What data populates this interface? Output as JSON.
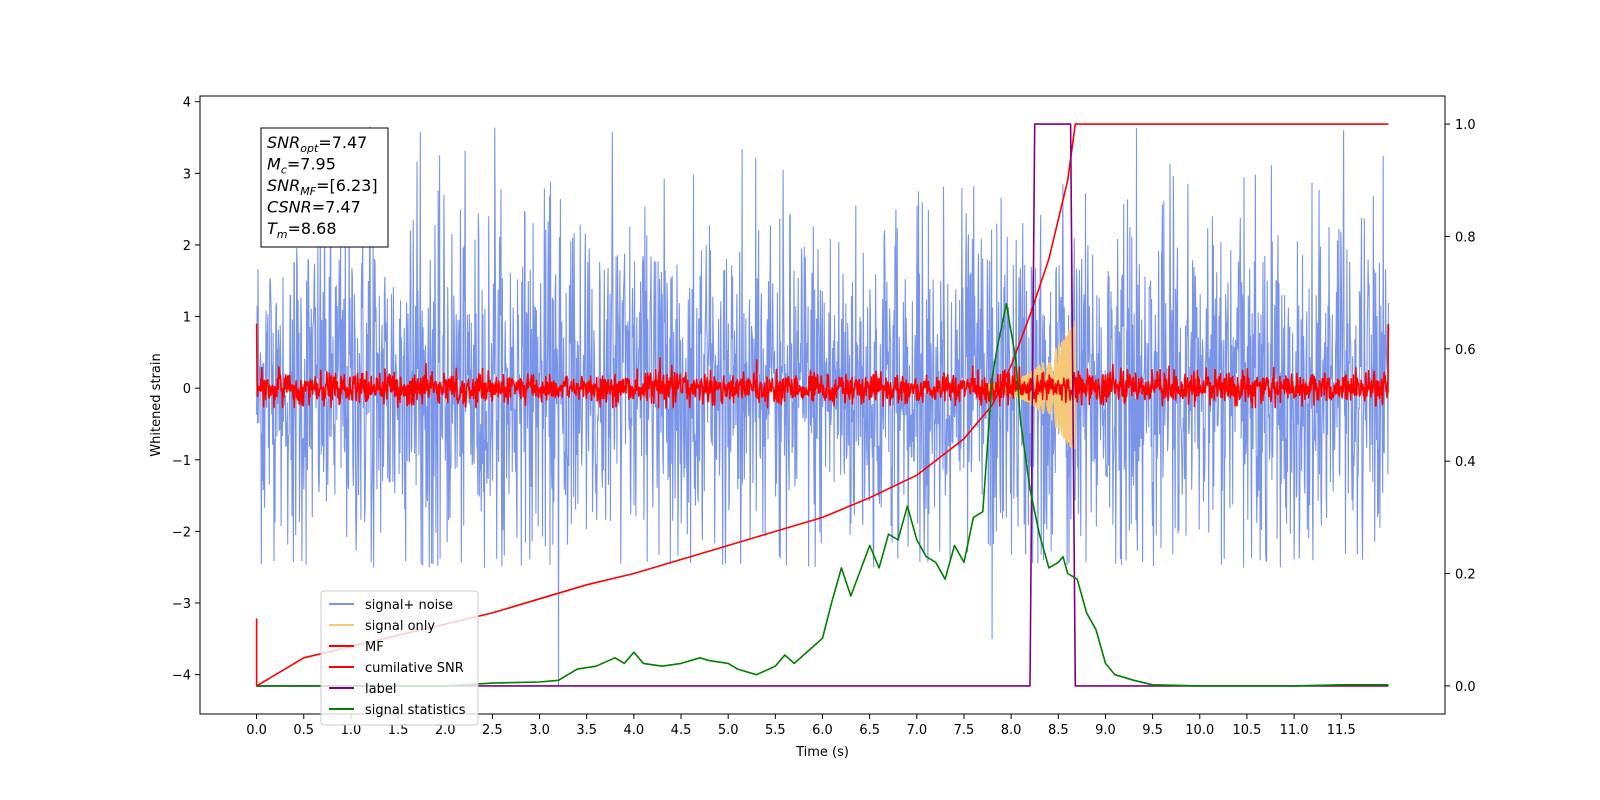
{
  "chart_data": {
    "type": "line",
    "xlabel": "Time (s)",
    "ylabel_left": "Whitened strain",
    "xlim": [
      -0.6,
      12.6
    ],
    "ylim_left": [
      -4.55,
      4.08
    ],
    "ylim_right": [
      -0.05,
      1.05
    ],
    "x_ticks": [
      "0.0",
      "0.5",
      "1.0",
      "1.5",
      "2.0",
      "2.5",
      "3.0",
      "3.5",
      "4.0",
      "4.5",
      "5.0",
      "5.5",
      "6.0",
      "6.5",
      "7.0",
      "7.5",
      "8.0",
      "8.5",
      "9.0",
      "9.5",
      "10.0",
      "10.5",
      "11.0",
      "11.5"
    ],
    "y_ticks_left": [
      "4",
      "3",
      "2",
      "1",
      "0",
      "−1",
      "−2",
      "−3",
      "−4"
    ],
    "y_ticks_right": [
      "1.0",
      "0.8",
      "0.6",
      "0.4",
      "0.2",
      "0.0"
    ],
    "grid": false,
    "legend_position": "lower-left",
    "annotation": [
      {
        "base": "SNR",
        "sub": "opt",
        "value": "=7.47"
      },
      {
        "base": "M",
        "sub": "c",
        "value": "=7.95"
      },
      {
        "base": "SNR",
        "sub": "MF",
        "value": "=[6.23]"
      },
      {
        "base": "CSNR",
        "sub": "",
        "value": "=7.47"
      },
      {
        "base": "T",
        "sub": "m",
        "value": "=8.68"
      }
    ],
    "series": [
      {
        "name": "signal+ noise",
        "axis": "left",
        "color": "#7a95e8",
        "style": "noise",
        "t_range": [
          0.0,
          12.0
        ],
        "amplitude_envelope": [
          -2.5,
          3.7
        ],
        "spike_times": [
          1.2,
          3.2,
          7.8
        ]
      },
      {
        "name": "signal only",
        "axis": "left",
        "color": "#f5c97a",
        "style": "chirp",
        "t_start": 7.7,
        "t_end": 8.68,
        "amp_start": 0.05,
        "amp_end": 0.95
      },
      {
        "name": "MF",
        "axis": "left",
        "color": "#ff0000",
        "style": "noise",
        "t_range": [
          0.0,
          12.0
        ],
        "amplitude_envelope": [
          -0.3,
          0.55
        ]
      },
      {
        "name": "cumilative SNR",
        "axis": "right",
        "color": "#ff0000",
        "style": "line",
        "x": [
          0.0,
          0.5,
          1.0,
          1.5,
          2.0,
          2.5,
          3.0,
          3.5,
          4.0,
          4.5,
          5.0,
          5.5,
          6.0,
          6.5,
          7.0,
          7.5,
          7.8,
          8.0,
          8.2,
          8.4,
          8.5,
          8.6,
          8.68,
          12.0
        ],
        "y": [
          0.0,
          0.05,
          0.07,
          0.09,
          0.11,
          0.13,
          0.155,
          0.18,
          0.2,
          0.225,
          0.25,
          0.275,
          0.3,
          0.335,
          0.375,
          0.44,
          0.5,
          0.57,
          0.66,
          0.76,
          0.83,
          0.9,
          1.0,
          1.0
        ]
      },
      {
        "name": "label",
        "axis": "right",
        "color": "#800080",
        "style": "line",
        "x": [
          0.0,
          8.2,
          8.25,
          8.63,
          8.68,
          12.0
        ],
        "y": [
          0.0,
          0.0,
          1.0,
          1.0,
          0.0,
          0.0
        ]
      },
      {
        "name": "signal statistics",
        "axis": "right",
        "color": "#008000",
        "style": "line",
        "x": [
          0.0,
          0.5,
          1.0,
          1.5,
          2.0,
          2.5,
          3.0,
          3.2,
          3.4,
          3.6,
          3.8,
          3.9,
          4.0,
          4.1,
          4.3,
          4.5,
          4.7,
          4.8,
          5.0,
          5.1,
          5.3,
          5.5,
          5.6,
          5.7,
          5.9,
          6.0,
          6.1,
          6.2,
          6.3,
          6.5,
          6.6,
          6.7,
          6.8,
          6.9,
          7.0,
          7.1,
          7.2,
          7.3,
          7.4,
          7.5,
          7.6,
          7.7,
          7.8,
          7.85,
          7.95,
          8.05,
          8.1,
          8.2,
          8.3,
          8.4,
          8.5,
          8.55,
          8.6,
          8.7,
          8.8,
          8.9,
          9.0,
          9.1,
          9.3,
          9.5,
          10.0,
          11.0,
          11.5,
          12.0
        ],
        "y": [
          0.0,
          0.0,
          0.0,
          0.0,
          0.0,
          0.005,
          0.007,
          0.01,
          0.03,
          0.035,
          0.05,
          0.04,
          0.06,
          0.04,
          0.035,
          0.04,
          0.05,
          0.045,
          0.04,
          0.03,
          0.02,
          0.035,
          0.055,
          0.04,
          0.07,
          0.085,
          0.15,
          0.21,
          0.16,
          0.25,
          0.21,
          0.27,
          0.26,
          0.32,
          0.26,
          0.23,
          0.22,
          0.19,
          0.25,
          0.22,
          0.3,
          0.31,
          0.55,
          0.6,
          0.68,
          0.58,
          0.47,
          0.35,
          0.27,
          0.21,
          0.22,
          0.23,
          0.2,
          0.19,
          0.13,
          0.1,
          0.04,
          0.02,
          0.01,
          0.002,
          0.0,
          0.0,
          0.002,
          0.002
        ]
      }
    ]
  }
}
